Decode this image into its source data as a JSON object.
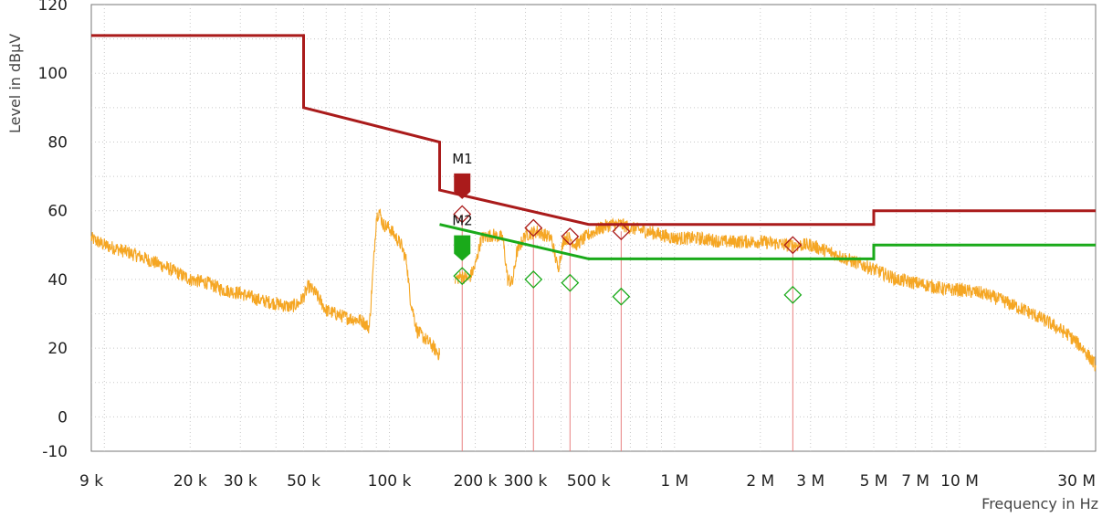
{
  "chart_data": {
    "type": "line",
    "title": "",
    "xlabel": "Frequency in Hz",
    "ylabel": "Level in  dBµV",
    "x_scale": "log",
    "xlim": [
      9000,
      30000000
    ],
    "ylim": [
      -10,
      120
    ],
    "grid": true,
    "y_ticks": [
      {
        "value": 120,
        "label": "120"
      },
      {
        "value": 100,
        "label": "100"
      },
      {
        "value": 80,
        "label": "80"
      },
      {
        "value": 60,
        "label": "60"
      },
      {
        "value": 40,
        "label": "40"
      },
      {
        "value": 20,
        "label": "20"
      },
      {
        "value": 0,
        "label": "0"
      },
      {
        "value": -10,
        "label": "-10"
      }
    ],
    "x_ticks": [
      {
        "value": 9000,
        "label": "9 k"
      },
      {
        "value": 20000,
        "label": "20 k"
      },
      {
        "value": 30000,
        "label": "30 k"
      },
      {
        "value": 50000,
        "label": "50 k"
      },
      {
        "value": 100000,
        "label": "100 k"
      },
      {
        "value": 200000,
        "label": "200 k"
      },
      {
        "value": 300000,
        "label": "300 k"
      },
      {
        "value": 500000,
        "label": "500 k"
      },
      {
        "value": 1000000,
        "label": "1 M"
      },
      {
        "value": 2000000,
        "label": "2 M"
      },
      {
        "value": 3000000,
        "label": "3 M"
      },
      {
        "value": 5000000,
        "label": "5 M"
      },
      {
        "value": 7000000,
        "label": "7 M"
      },
      {
        "value": 10000000,
        "label": "10 M"
      },
      {
        "value": 30000000,
        "label": "30 M"
      }
    ],
    "limit_lines": [
      {
        "color": "#aa1b1b",
        "points": [
          [
            9000,
            111
          ],
          [
            50000,
            111
          ],
          [
            50000,
            90
          ],
          [
            150000,
            80
          ],
          [
            150000,
            66
          ],
          [
            500000,
            56
          ],
          [
            5000000,
            56
          ],
          [
            5000000,
            60
          ],
          [
            30000000,
            60
          ]
        ]
      },
      {
        "color": "#1aaa1a",
        "points": [
          [
            150000,
            56
          ],
          [
            500000,
            46
          ],
          [
            5000000,
            46
          ],
          [
            5000000,
            50
          ],
          [
            30000000,
            50
          ]
        ]
      }
    ],
    "spectrum": {
      "color": "#f5a623",
      "points": [
        [
          9000,
          52
        ],
        [
          10000,
          50
        ],
        [
          11000,
          49
        ],
        [
          12000,
          48
        ],
        [
          14000,
          46
        ],
        [
          16000,
          44
        ],
        [
          18000,
          42
        ],
        [
          20000,
          40
        ],
        [
          23000,
          39
        ],
        [
          26000,
          37
        ],
        [
          30000,
          36
        ],
        [
          35000,
          34
        ],
        [
          40000,
          33
        ],
        [
          45000,
          32
        ],
        [
          48000,
          33
        ],
        [
          50000,
          35
        ],
        [
          52000,
          38
        ],
        [
          55000,
          36
        ],
        [
          60000,
          31
        ],
        [
          70000,
          29
        ],
        [
          80000,
          28
        ],
        [
          85000,
          26
        ],
        [
          88000,
          45
        ],
        [
          90000,
          58
        ],
        [
          92000,
          60
        ],
        [
          95000,
          56
        ],
        [
          100000,
          55
        ],
        [
          110000,
          50
        ],
        [
          115000,
          45
        ],
        [
          118000,
          35
        ],
        [
          125000,
          25
        ],
        [
          140000,
          21
        ],
        [
          150000,
          18
        ],
        [
          170000,
          40
        ],
        [
          180000,
          41
        ],
        [
          190000,
          40
        ],
        [
          200000,
          44
        ],
        [
          210000,
          52
        ],
        [
          230000,
          53
        ],
        [
          250000,
          52
        ],
        [
          260000,
          40
        ],
        [
          270000,
          39
        ],
        [
          280000,
          48
        ],
        [
          300000,
          53
        ],
        [
          330000,
          54
        ],
        [
          350000,
          53
        ],
        [
          370000,
          52
        ],
        [
          390000,
          43
        ],
        [
          410000,
          52
        ],
        [
          430000,
          52
        ],
        [
          450000,
          50
        ],
        [
          500000,
          53
        ],
        [
          550000,
          55
        ],
        [
          600000,
          56
        ],
        [
          650000,
          56
        ],
        [
          700000,
          55
        ],
        [
          800000,
          54
        ],
        [
          900000,
          53
        ],
        [
          1000000,
          52
        ],
        [
          1200000,
          52
        ],
        [
          1500000,
          51
        ],
        [
          2000000,
          51
        ],
        [
          2500000,
          50
        ],
        [
          3000000,
          50
        ],
        [
          3500000,
          48
        ],
        [
          4000000,
          46
        ],
        [
          5000000,
          43
        ],
        [
          6000000,
          40
        ],
        [
          7000000,
          39
        ],
        [
          8000000,
          38
        ],
        [
          9000000,
          37
        ],
        [
          10000000,
          37
        ],
        [
          12000000,
          36
        ],
        [
          14000000,
          34
        ],
        [
          17000000,
          31
        ],
        [
          20000000,
          28
        ],
        [
          24000000,
          24
        ],
        [
          27000000,
          20
        ],
        [
          30000000,
          15
        ]
      ]
    },
    "markers": [
      {
        "label": "M1",
        "freq": 180000,
        "level": 65,
        "color": "#aa1b1b"
      },
      {
        "label": "M2",
        "freq": 180000,
        "level": 47,
        "color": "#1aaa1a"
      }
    ],
    "final_measurements": [
      {
        "freq": 180000,
        "qp": 59,
        "avg": 41
      },
      {
        "freq": 320000,
        "qp": 55,
        "avg": 40
      },
      {
        "freq": 430000,
        "qp": 52.5,
        "avg": 39
      },
      {
        "freq": 650000,
        "qp": 54,
        "avg": 35
      },
      {
        "freq": 2600000,
        "qp": 50,
        "avg": 35.5
      }
    ],
    "qp_marker_color": "#aa1b1b",
    "avg_marker_color": "#1aaa1a",
    "measurement_line_color": "#e88080"
  }
}
